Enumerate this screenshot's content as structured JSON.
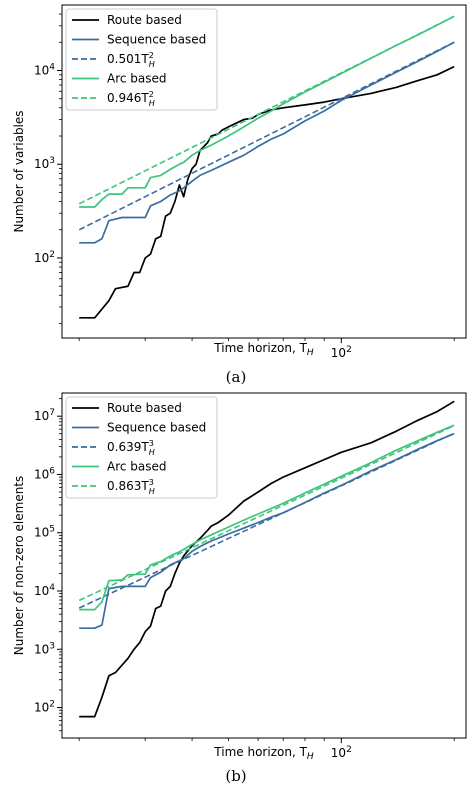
{
  "chart_data": [
    {
      "type": "line",
      "xscale": "log",
      "yscale": "log",
      "xlabel": "Time horizon, T",
      "xlabel_sub": "H",
      "ylabel": "Number of variables",
      "caption": "(a)",
      "xlim": [
        18,
        215
      ],
      "ylim": [
        14,
        50000
      ],
      "x_ticks": [
        {
          "value": 100,
          "base": "10",
          "exp": "2"
        }
      ],
      "y_ticks": [
        {
          "value": 100,
          "base": "10",
          "exp": "2"
        },
        {
          "value": 1000,
          "base": "10",
          "exp": "3"
        },
        {
          "value": 10000,
          "base": "10",
          "exp": "4"
        }
      ],
      "legend_position": "upper left",
      "series": [
        {
          "name": "Route based",
          "color": "#000000",
          "style": "solid",
          "x": [
            20,
            22,
            24,
            25,
            27,
            28,
            29,
            30,
            31,
            32,
            33,
            34,
            35,
            36,
            37,
            38,
            39,
            40,
            41,
            42,
            44,
            45,
            47,
            48,
            50,
            52,
            55,
            58,
            60,
            65,
            70,
            80,
            90,
            100,
            120,
            140,
            160,
            180,
            200
          ],
          "y": [
            23,
            23,
            35,
            47,
            50,
            70,
            70,
            100,
            110,
            160,
            170,
            280,
            300,
            400,
            600,
            450,
            700,
            900,
            1000,
            1400,
            1700,
            2000,
            2100,
            2300,
            2500,
            2700,
            3000,
            3100,
            3400,
            3800,
            4000,
            4300,
            4600,
            5000,
            5700,
            6600,
            7800,
            9000,
            11000
          ]
        },
        {
          "name": "Sequence based",
          "color": "#3a6e9f",
          "style": "solid",
          "x": [
            20,
            22,
            23,
            24,
            26,
            30,
            31,
            33,
            35,
            37,
            38,
            40,
            42,
            45,
            50,
            55,
            60,
            65,
            70,
            80,
            90,
            100,
            120,
            140,
            160,
            180,
            200
          ],
          "y": [
            145,
            145,
            160,
            250,
            270,
            270,
            360,
            400,
            470,
            520,
            560,
            660,
            760,
            860,
            1050,
            1250,
            1550,
            1850,
            2100,
            2900,
            3700,
            4800,
            7000,
            9600,
            12500,
            16000,
            20000
          ]
        },
        {
          "name": "0.501T",
          "label_exp": "2",
          "label_sub": "H",
          "color": "#3a6e9f",
          "style": "dashed",
          "x": [
            20,
            30,
            40,
            60,
            80,
            100,
            150,
            200
          ],
          "y": [
            200,
            451,
            802,
            1804,
            3206,
            5010,
            11273,
            20040
          ]
        },
        {
          "name": "Arc based",
          "color": "#3ec47c",
          "style": "solid",
          "x": [
            20,
            22,
            23,
            24,
            26,
            27,
            30,
            31,
            33,
            35,
            37,
            38,
            40,
            42,
            45,
            50,
            55,
            60,
            65,
            70,
            80,
            90,
            100,
            120,
            140,
            160,
            180,
            200
          ],
          "y": [
            350,
            350,
            420,
            480,
            480,
            560,
            560,
            720,
            760,
            880,
            1000,
            1050,
            1250,
            1400,
            1600,
            2000,
            2500,
            3100,
            3700,
            4400,
            5900,
            7500,
            9300,
            13500,
            18500,
            24000,
            30500,
            38000
          ]
        },
        {
          "name": "0.946T",
          "label_exp": "2",
          "label_sub": "H",
          "color": "#3ec47c",
          "style": "dashed",
          "x": [
            20,
            30,
            40,
            60,
            80,
            100,
            150,
            200
          ],
          "y": [
            378,
            851,
            1514,
            3406,
            6054,
            9460,
            21285,
            37840
          ]
        }
      ]
    },
    {
      "type": "line",
      "xscale": "log",
      "yscale": "log",
      "xlabel": "Time horizon, T",
      "xlabel_sub": "H",
      "ylabel": "Number of non-zero elements",
      "caption": "(b)",
      "xlim": [
        18,
        215
      ],
      "ylim": [
        30,
        25000000
      ],
      "x_ticks": [
        {
          "value": 100,
          "base": "10",
          "exp": "2"
        }
      ],
      "y_ticks": [
        {
          "value": 100,
          "base": "10",
          "exp": "2"
        },
        {
          "value": 1000,
          "base": "10",
          "exp": "3"
        },
        {
          "value": 10000,
          "base": "10",
          "exp": "4"
        },
        {
          "value": 100000,
          "base": "10",
          "exp": "5"
        },
        {
          "value": 1000000,
          "base": "10",
          "exp": "6"
        },
        {
          "value": 10000000,
          "base": "10",
          "exp": "7"
        }
      ],
      "legend_position": "upper left",
      "series": [
        {
          "name": "Route based",
          "color": "#000000",
          "style": "solid",
          "x": [
            20,
            22,
            23,
            24,
            25,
            27,
            28,
            29,
            30,
            31,
            32,
            33,
            34,
            35,
            36,
            37,
            38,
            40,
            42,
            44,
            45,
            47,
            50,
            55,
            60,
            65,
            70,
            80,
            90,
            100,
            120,
            140,
            160,
            180,
            200
          ],
          "y": [
            70,
            70,
            150,
            350,
            400,
            700,
            1000,
            1300,
            2000,
            2500,
            5000,
            5500,
            10000,
            12000,
            20000,
            30000,
            40000,
            60000,
            80000,
            110000,
            130000,
            150000,
            200000,
            350000,
            500000,
            700000,
            900000,
            1300000,
            1800000,
            2400000,
            3500000,
            5500000,
            8500000,
            12000000,
            18000000
          ]
        },
        {
          "name": "Sequence based",
          "color": "#3a6e9f",
          "style": "solid",
          "x": [
            20,
            22,
            23,
            24,
            26,
            30,
            31,
            33,
            35,
            37,
            38,
            40,
            42,
            45,
            50,
            55,
            60,
            65,
            70,
            80,
            90,
            100,
            120,
            140,
            160,
            180,
            200
          ],
          "y": [
            2300,
            2300,
            2600,
            11000,
            12000,
            12000,
            17000,
            21000,
            28000,
            33000,
            36000,
            48000,
            58000,
            72000,
            95000,
            120000,
            150000,
            185000,
            220000,
            330000,
            480000,
            650000,
            1150000,
            1800000,
            2700000,
            3800000,
            5000000
          ]
        },
        {
          "name": "0.639T",
          "label_exp": "3",
          "label_sub": "H",
          "color": "#3a6e9f",
          "style": "dashed",
          "x": [
            20,
            30,
            40,
            60,
            80,
            100,
            150,
            200
          ],
          "y": [
            5112,
            17253,
            40896,
            138024,
            327168,
            639000,
            2156625,
            5112000
          ]
        },
        {
          "name": "Arc based",
          "color": "#3ec47c",
          "style": "solid",
          "x": [
            20,
            22,
            23,
            24,
            26,
            27,
            30,
            31,
            33,
            35,
            37,
            38,
            40,
            42,
            45,
            50,
            55,
            60,
            65,
            70,
            80,
            90,
            100,
            120,
            140,
            160,
            180,
            200
          ],
          "y": [
            4800,
            4800,
            6500,
            15000,
            15500,
            19000,
            19500,
            28000,
            32000,
            40000,
            47000,
            52000,
            63000,
            75000,
            92000,
            125000,
            165000,
            210000,
            260000,
            320000,
            480000,
            680000,
            930000,
            1600000,
            2600000,
            3800000,
            5300000,
            7000000
          ]
        },
        {
          "name": "0.863T",
          "label_exp": "3",
          "label_sub": "H",
          "color": "#3ec47c",
          "style": "dashed",
          "x": [
            20,
            30,
            40,
            60,
            80,
            100,
            150,
            200
          ],
          "y": [
            6904,
            23301,
            55232,
            186408,
            441856,
            863000,
            2912625,
            6904000
          ]
        }
      ]
    }
  ]
}
